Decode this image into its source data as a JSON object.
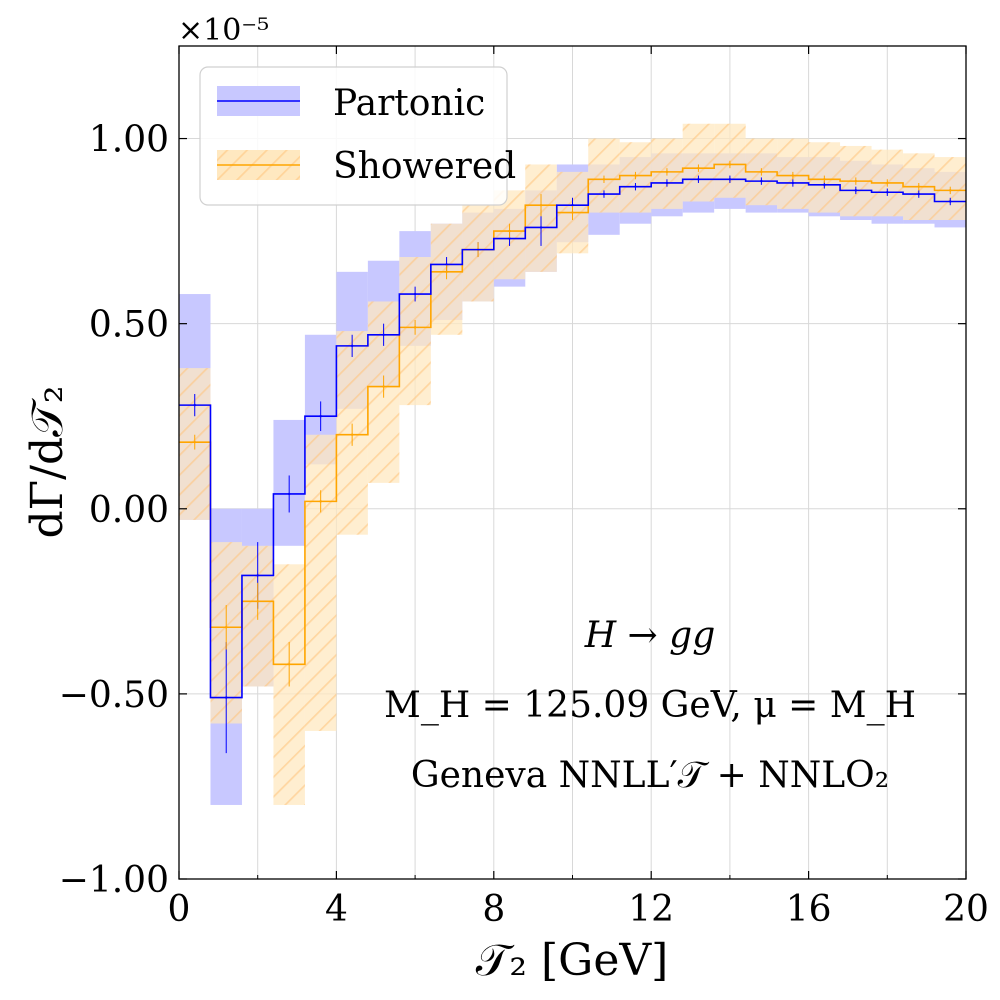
{
  "chart_data": {
    "type": "line",
    "subtype": "step-histogram-with-uncertainty-bands",
    "xlabel": "𝒯₂   [GeV]",
    "ylabel": "dΓ/d𝒯₂",
    "y_scale_label": "×10⁻⁵",
    "xlim": [
      0,
      20
    ],
    "ylim": [
      -1.0,
      1.25
    ],
    "x_ticks": [
      0,
      4,
      8,
      12,
      16,
      20
    ],
    "x_tick_labels": [
      "0",
      "4",
      "8",
      "12",
      "16",
      "20"
    ],
    "y_ticks": [
      -1.0,
      -0.5,
      0.0,
      0.5,
      1.0
    ],
    "y_tick_labels": [
      "−1.00",
      "−0.50",
      "0.00",
      "0.50",
      "1.00"
    ],
    "grid": true,
    "legend_position": "top-left",
    "bin_edges": [
      0,
      0.8,
      1.6,
      2.4,
      3.2,
      4.0,
      4.8,
      5.6,
      6.4,
      7.2,
      8.0,
      8.8,
      9.6,
      10.4,
      11.2,
      12.0,
      12.8,
      13.6,
      14.4,
      15.2,
      16.0,
      16.8,
      17.6,
      18.4,
      19.2,
      20.0
    ],
    "series": [
      {
        "name": "Partonic",
        "color": "#0000ff",
        "band_color": "#c8c8ff",
        "values": [
          0.28,
          -0.51,
          -0.18,
          0.04,
          0.25,
          0.44,
          0.47,
          0.58,
          0.66,
          0.7,
          0.73,
          0.76,
          0.82,
          0.85,
          0.87,
          0.88,
          0.89,
          0.89,
          0.885,
          0.88,
          0.875,
          0.86,
          0.855,
          0.85,
          0.83
        ],
        "band_low": [
          -0.03,
          -0.8,
          -0.48,
          -0.1,
          0.12,
          0.27,
          0.33,
          0.44,
          0.51,
          0.56,
          0.6,
          0.64,
          0.72,
          0.74,
          0.77,
          0.79,
          0.8,
          0.81,
          0.8,
          0.8,
          0.79,
          0.78,
          0.77,
          0.77,
          0.76
        ],
        "band_high": [
          0.58,
          0.0,
          0.0,
          0.24,
          0.47,
          0.64,
          0.67,
          0.75,
          0.77,
          0.8,
          0.81,
          0.86,
          0.93,
          0.93,
          0.95,
          0.96,
          0.96,
          0.96,
          0.96,
          0.95,
          0.95,
          0.94,
          0.93,
          0.92,
          0.91
        ],
        "errors": [
          0.03,
          0.15,
          0.09,
          0.05,
          0.04,
          0.03,
          0.03,
          0.02,
          0.02,
          0.02,
          0.02,
          0.05,
          0.02,
          0.01,
          0.01,
          0.01,
          0.01,
          0.01,
          0.01,
          0.01,
          0.01,
          0.01,
          0.01,
          0.01,
          0.01
        ]
      },
      {
        "name": "Showered",
        "color": "#ffa500",
        "band_color": "#ffe8c0",
        "values": [
          0.18,
          -0.32,
          -0.25,
          -0.42,
          0.02,
          0.2,
          0.33,
          0.49,
          0.64,
          0.7,
          0.75,
          0.82,
          0.8,
          0.89,
          0.9,
          0.91,
          0.92,
          0.93,
          0.91,
          0.9,
          0.89,
          0.885,
          0.88,
          0.87,
          0.86
        ],
        "band_low": [
          -0.03,
          -0.58,
          -0.48,
          -0.8,
          -0.6,
          -0.07,
          0.07,
          0.28,
          0.47,
          0.56,
          0.62,
          0.64,
          0.69,
          0.8,
          0.8,
          0.81,
          0.83,
          0.84,
          0.82,
          0.81,
          0.8,
          0.79,
          0.79,
          0.78,
          0.78
        ],
        "band_high": [
          0.38,
          -0.09,
          -0.1,
          -0.15,
          0.2,
          0.48,
          0.56,
          0.68,
          0.77,
          0.82,
          0.86,
          0.93,
          0.91,
          1.0,
          0.99,
          1.0,
          1.04,
          1.04,
          1.0,
          1.0,
          0.99,
          0.98,
          0.97,
          0.96,
          0.95
        ],
        "errors": [
          0.02,
          0.06,
          0.05,
          0.06,
          0.03,
          0.03,
          0.03,
          0.02,
          0.02,
          0.02,
          0.02,
          0.03,
          0.02,
          0.01,
          0.01,
          0.01,
          0.01,
          0.01,
          0.01,
          0.01,
          0.01,
          0.01,
          0.01,
          0.01,
          0.01
        ]
      }
    ],
    "annotations": [
      "H → gg",
      "M_H = 125.09 GeV,  μ = M_H",
      "Geneva    NNLL′𝒯 + NNLO₂"
    ]
  }
}
